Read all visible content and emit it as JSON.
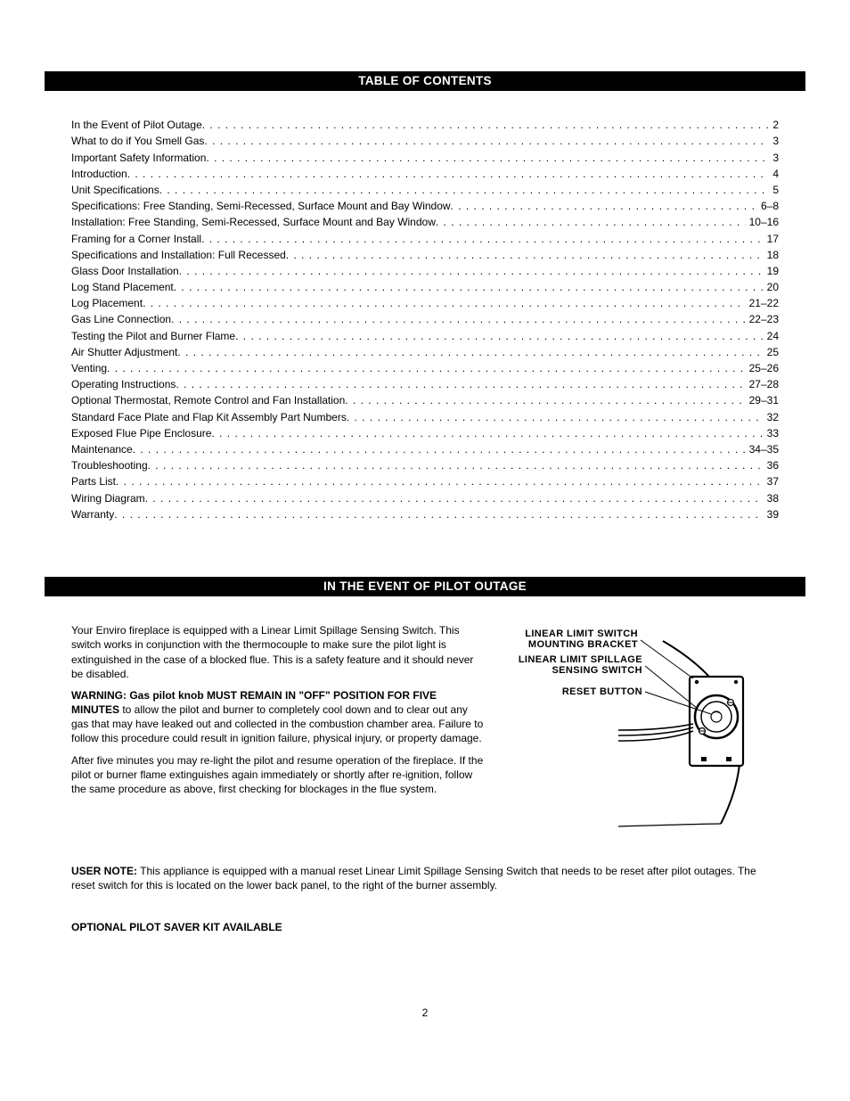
{
  "banners": {
    "toc_title": "TABLE OF CONTENTS",
    "outage_title": "IN THE EVENT OF PILOT OUTAGE"
  },
  "toc": {
    "colors": {
      "banner_bg": "#000000",
      "banner_fg": "#ffffff",
      "text": "#000000"
    },
    "items": [
      {
        "label": "In the Event of Pilot Outage",
        "page": "2"
      },
      {
        "label": "What to do if You Smell Gas",
        "page": "3"
      },
      {
        "label": "Important Safety Information",
        "page": "3"
      },
      {
        "label": "Introduction",
        "page": "4"
      },
      {
        "label": "Unit Specifications",
        "page": "5"
      },
      {
        "label": "Specifications: Free Standing, Semi-Recessed, Surface Mount and Bay Window",
        "page": "6–8"
      },
      {
        "label": "Installation: Free Standing, Semi-Recessed, Surface Mount and Bay Window",
        "page": "10–16"
      },
      {
        "label": "Framing for a Corner Install",
        "page": "17"
      },
      {
        "label": "Specifications and Installation: Full Recessed",
        "page": "18"
      },
      {
        "label": "Glass Door Installation",
        "page": "19"
      },
      {
        "label": "Log Stand Placement",
        "page": "20"
      },
      {
        "label": "Log Placement",
        "page": "21–22"
      },
      {
        "label": "Gas Line Connection",
        "page": "22–23"
      },
      {
        "label": "Testing the Pilot and Burner Flame",
        "page": "24"
      },
      {
        "label": "Air Shutter Adjustment",
        "page": "25"
      },
      {
        "label": "Venting",
        "page": "25–26"
      },
      {
        "label": "Operating Instructions",
        "page": "27–28"
      },
      {
        "label": "Optional Thermostat, Remote Control and Fan Installation",
        "page": "29–31"
      },
      {
        "label": "Standard Face Plate and Flap Kit Assembly Part Numbers",
        "page": "32"
      },
      {
        "label": "Exposed Flue Pipe Enclosure",
        "page": "33"
      },
      {
        "label": "Maintenance",
        "page": "34–35"
      },
      {
        "label": "Troubleshooting",
        "page": "36"
      },
      {
        "label": "Parts List",
        "page": "37"
      },
      {
        "label": "Wiring Diagram",
        "page": "38"
      },
      {
        "label": "Warranty",
        "page": "39"
      }
    ],
    "dots_fill": ". . . . . . . . . . . . . . . . . . . . . . . . . . . . . . . . . . . . . . . . . . . . . . . . . . . . . . . . . . . . . . . . . . . . . . . . . . . . . . . . . . . . . . . . . . . . . . . . . . . . . . . . . . . . . . . . . . . . . . . . . . . . . . . . . . . . . . . . . . . . . . . . . . . . . . . . . . . . . . . . . . . . . . . . . . . . . . . . . . . . . . . . . . . . . . . . . . . . . . . . . . . . . . ."
  },
  "outage": {
    "intro": "Your Enviro fireplace is equipped with a Linear Limit Spillage Sensing Switch. This switch works in conjunction with the thermocouple to make sure the pilot light is extinguished in the case of a blocked flue. This is a safety feature and it should never be disabled.",
    "warn_lead": "WARNING: Gas pilot knob MUST REMAIN IN \"OFF\" POSITION FOR FIVE MINUTES",
    "warn_rest": " to allow the pilot and burner to completely cool down and to clear out any gas that may have leaked out and collected in the combustion chamber area. Failure to follow this procedure could result in ignition failure, physical injury, or property damage.",
    "after_five": "After five minutes you may re-light the pilot and resume operation of the fireplace. If the pilot or burner flame extinguishes again immediately or shortly after re-ignition, follow the same procedure as above, first checking for blockages in the flue system.",
    "user_note_head": "USER NOTE:",
    "user_note_body": " This appliance is equipped with a manual reset Linear Limit Spillage Sensing Switch that needs to be reset after pilot outages. The reset switch for this is located on the lower back panel, to the right of the burner assembly.",
    "pilot_saver_head": "OPTIONAL PILOT SAVER KIT AVAILABLE",
    "diagram_labels": {
      "l1a": "LINEAR  LIMIT  SWITCH",
      "l1b": "MOUNTING  BRACKET",
      "l2a": "LINEAR  LIMIT  SPILLAGE",
      "l2b": "SENSING  SWITCH",
      "l3": "RESET  BUTTON"
    }
  },
  "page_number": "2"
}
